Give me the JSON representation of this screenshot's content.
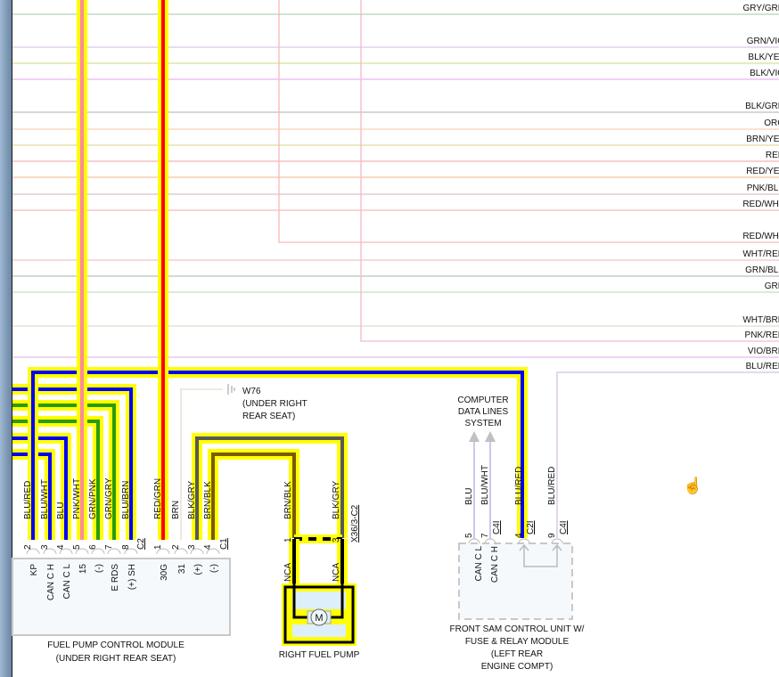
{
  "harness_lines": [
    {
      "label": "GRY/GRN",
      "color": "#b9d3b9"
    },
    {
      "label": "GRN/VIO",
      "color": "#d9c7ea"
    },
    {
      "label": "BLK/YEL",
      "color": "#dede9e"
    },
    {
      "label": "BLK/VIO",
      "color": "#e6b6ee"
    },
    {
      "label": "BLK/GRN",
      "color": "#b4c9b4"
    },
    {
      "label": "ORG",
      "color": "#f7d6b6"
    },
    {
      "label": "BRN/YEL",
      "color": "#e0dca0"
    },
    {
      "label": "RED",
      "color": "#f5b5b5"
    },
    {
      "label": "RED/YEL",
      "color": "#f6c6a6"
    },
    {
      "label": "PNK/BLK",
      "color": "#dcc2cc"
    },
    {
      "label": "RED/WHT",
      "color": "#f6bcbc"
    },
    {
      "label": "RED/WHT",
      "color": "#f6bcbc"
    },
    {
      "label": "WHT/RED",
      "color": "#f6c4c4"
    },
    {
      "label": "GRN/BLK",
      "color": "#b4c9b4"
    },
    {
      "label": "GRN",
      "color": "#c6e2c0"
    },
    {
      "label": "WHT/BRN",
      "color": "#e4dccc"
    },
    {
      "label": "PNK/RED",
      "color": "#f6bcc6"
    },
    {
      "label": "VIO/BRN",
      "color": "#e6bcee"
    },
    {
      "label": "BLU/RED",
      "color": "#d6c2e6"
    }
  ],
  "fpcm": {
    "title_line1": "FUEL PUMP CONTROL MODULE",
    "title_line2": "(UNDER RIGHT REAR SEAT)",
    "connector_c2": "C2",
    "connector_c1": "C1",
    "pins": [
      {
        "num": "2",
        "wire": "BLU/RED",
        "func": "KP",
        "color": "#0000ff"
      },
      {
        "num": "3",
        "wire": "BLU/WHT",
        "func": "CAN C H",
        "color": "#0000ff"
      },
      {
        "num": "4",
        "wire": "BLU",
        "func": "CAN C L",
        "color": "#0000ff"
      },
      {
        "num": "5",
        "wire": "PNK/WHT",
        "func": "15",
        "color": "#ff8a9a"
      },
      {
        "num": "6",
        "wire": "GRN/PNK",
        "func": "(-)",
        "color": "#2a9a10"
      },
      {
        "num": "7",
        "wire": "GRN/GRY",
        "func": "E RDS",
        "color": "#2a9a10"
      },
      {
        "num": "8",
        "wire": "BLU/BRN",
        "func": "(+) SH",
        "color": "#0000ff"
      },
      {
        "num": "1",
        "wire": "RED/GRN",
        "func": "30G",
        "color": "#ff0000"
      },
      {
        "num": "2",
        "wire": "BRN",
        "func": "31",
        "color": "#e6ded0"
      },
      {
        "num": "3",
        "wire": "BLK/GRY",
        "func": "(+)",
        "color": "#585858"
      },
      {
        "num": "4",
        "wire": "BRN/BLK",
        "func": "(-)",
        "color": "#7a5a00"
      }
    ]
  },
  "ground": {
    "id": "W76",
    "location_line1": "(UNDER RIGHT",
    "location_line2": "REAR SEAT)"
  },
  "pump": {
    "title": "RIGHT FUEL PUMP",
    "connector": "X36/3-C2",
    "motor": "M",
    "pins": [
      {
        "num": "1",
        "wire": "BRN/BLK",
        "nca": "NCA"
      },
      {
        "num": "3",
        "wire": "BLK/GRY",
        "nca": "NCA"
      }
    ]
  },
  "data_lines": {
    "line1": "COMPUTER",
    "line2": "DATA LINES",
    "line3": "SYSTEM"
  },
  "sam": {
    "title_line1": "FRONT SAM CONTROL UNIT W/",
    "title_line2": "FUSE & RELAY MODULE",
    "title_line3": "(LEFT REAR",
    "title_line4": "ENGINE COMPT)",
    "pins": [
      {
        "num": "5",
        "wire": "BLU",
        "conn": "",
        "func": "CAN C L"
      },
      {
        "num": "7",
        "wire": "BLU/WHT",
        "conn": "C4I",
        "func": "CAN C H"
      },
      {
        "num": "4",
        "wire": "BLU/RED",
        "conn": "C2I",
        "func": ""
      },
      {
        "num": "9",
        "wire": "BLU/RED",
        "conn": "C4I",
        "func": ""
      }
    ]
  },
  "colors": {
    "highlight": "#ffff00",
    "module_fill": "#f5f9fc",
    "module_border": "#c8c8c8"
  },
  "cursor_icon": "hand-pointer-icon"
}
